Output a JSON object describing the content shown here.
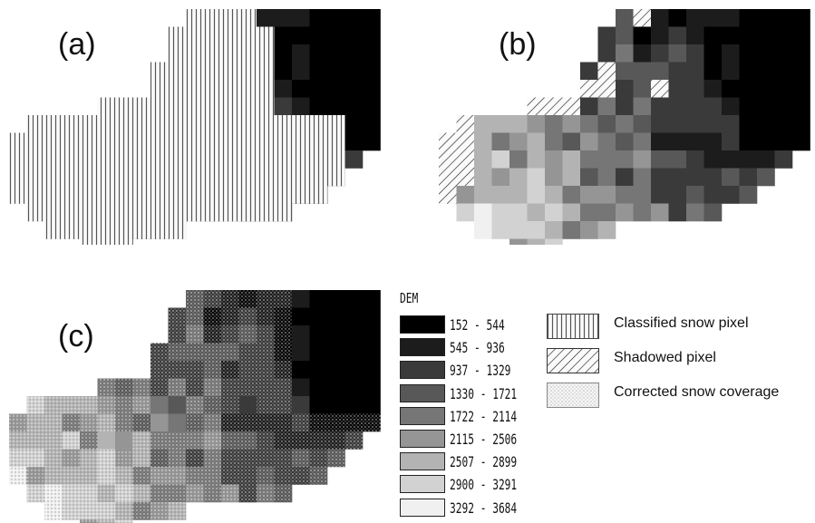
{
  "panels": {
    "a": {
      "label": "(a)"
    },
    "b": {
      "label": "(b)"
    },
    "c": {
      "label": "(c)"
    }
  },
  "dem_legend": {
    "title": "DEM",
    "classes": [
      {
        "range": "152 - 544",
        "color": "#000000"
      },
      {
        "range": "545 - 936",
        "color": "#1c1c1c"
      },
      {
        "range": "937 - 1329",
        "color": "#3a3a3a"
      },
      {
        "range": "1330 - 1721",
        "color": "#585858"
      },
      {
        "range": "1722 - 2114",
        "color": "#767676"
      },
      {
        "range": "2115 - 2506",
        "color": "#959595"
      },
      {
        "range": "2507 - 2899",
        "color": "#b3b3b3"
      },
      {
        "range": "2900 - 3291",
        "color": "#d2d2d2"
      },
      {
        "range": "3292 - 3684",
        "color": "#f0f0f0"
      }
    ]
  },
  "symbol_legend": [
    {
      "key": "snow",
      "label": "Classified snow pixel",
      "pattern": "vertical-hatch"
    },
    {
      "key": "shadow",
      "label": "Shadowed pixel",
      "pattern": "diagonal-hatch"
    },
    {
      "key": "corrected",
      "label": "Corrected snow coverage",
      "pattern": "stipple"
    }
  ]
}
